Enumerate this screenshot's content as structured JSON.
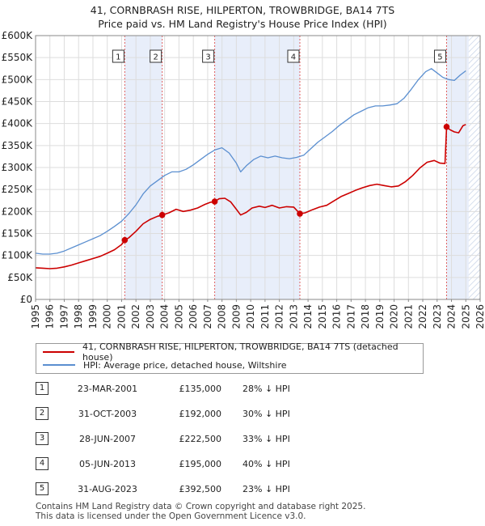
{
  "title": {
    "line1": "41, CORNBRASH RISE, HILPERTON, TROWBRIDGE, BA14 7TS",
    "line2": "Price paid vs. HM Land Registry's House Price Index (HPI)"
  },
  "chart_data": {
    "type": "line",
    "x_range": [
      1995,
      2026
    ],
    "y_range": [
      0,
      600000
    ],
    "y_ticks": [
      {
        "value": 0,
        "label": "£0"
      },
      {
        "value": 50000,
        "label": "£50K"
      },
      {
        "value": 100000,
        "label": "£100K"
      },
      {
        "value": 150000,
        "label": "£150K"
      },
      {
        "value": 200000,
        "label": "£200K"
      },
      {
        "value": 250000,
        "label": "£250K"
      },
      {
        "value": 300000,
        "label": "£300K"
      },
      {
        "value": 350000,
        "label": "£350K"
      },
      {
        "value": 400000,
        "label": "£400K"
      },
      {
        "value": 450000,
        "label": "£450K"
      },
      {
        "value": 500000,
        "label": "£500K"
      },
      {
        "value": 550000,
        "label": "£550K"
      },
      {
        "value": 600000,
        "label": "£600K"
      }
    ],
    "x_ticks": [
      "1995",
      "1996",
      "1997",
      "1998",
      "1999",
      "2000",
      "2001",
      "2002",
      "2003",
      "2004",
      "2005",
      "2006",
      "2007",
      "2008",
      "2009",
      "2010",
      "2011",
      "2012",
      "2013",
      "2014",
      "2015",
      "2016",
      "2017",
      "2018",
      "2019",
      "2020",
      "2021",
      "2022",
      "2023",
      "2024",
      "2025",
      "2026"
    ],
    "shaded_periods": [
      [
        2001.22,
        2003.83
      ],
      [
        2007.49,
        2013.43
      ],
      [
        2023.66,
        2025.2
      ]
    ],
    "hatched_after": 2025.2,
    "colors": {
      "property": "#cc0000",
      "hpi": "#5b8fd0",
      "shade": "#e8eefa",
      "vline": "#e06060",
      "grid": "#dddddd"
    },
    "series": [
      {
        "name": "41, CORNBRASH RISE, HILPERTON, TROWBRIDGE, BA14 7TS (detached house)",
        "color": "#cc0000",
        "points": [
          [
            1995.0,
            72000
          ],
          [
            1995.5,
            71000
          ],
          [
            1996.0,
            70000
          ],
          [
            1996.5,
            71000
          ],
          [
            1997.0,
            74000
          ],
          [
            1997.5,
            78000
          ],
          [
            1998.0,
            83000
          ],
          [
            1998.5,
            88000
          ],
          [
            1999.0,
            93000
          ],
          [
            1999.5,
            98000
          ],
          [
            2000.0,
            105000
          ],
          [
            2000.5,
            113000
          ],
          [
            2001.0,
            125000
          ],
          [
            2001.22,
            135000
          ],
          [
            2001.5,
            140000
          ],
          [
            2002.0,
            155000
          ],
          [
            2002.5,
            172000
          ],
          [
            2003.0,
            182000
          ],
          [
            2003.5,
            189000
          ],
          [
            2003.83,
            192000
          ],
          [
            2004.3,
            197000
          ],
          [
            2004.8,
            205000
          ],
          [
            2005.3,
            200000
          ],
          [
            2005.8,
            203000
          ],
          [
            2006.3,
            208000
          ],
          [
            2006.8,
            216000
          ],
          [
            2007.2,
            221000
          ],
          [
            2007.49,
            222500
          ],
          [
            2007.8,
            229000
          ],
          [
            2008.2,
            230000
          ],
          [
            2008.6,
            222000
          ],
          [
            2009.0,
            205000
          ],
          [
            2009.3,
            192000
          ],
          [
            2009.7,
            198000
          ],
          [
            2010.1,
            208000
          ],
          [
            2010.6,
            212000
          ],
          [
            2011.0,
            209000
          ],
          [
            2011.5,
            214000
          ],
          [
            2012.0,
            208000
          ],
          [
            2012.5,
            211000
          ],
          [
            2013.0,
            210000
          ],
          [
            2013.43,
            195000
          ],
          [
            2013.8,
            197000
          ],
          [
            2014.3,
            204000
          ],
          [
            2014.8,
            210000
          ],
          [
            2015.3,
            214000
          ],
          [
            2015.8,
            224000
          ],
          [
            2016.3,
            234000
          ],
          [
            2016.8,
            241000
          ],
          [
            2017.3,
            248000
          ],
          [
            2017.8,
            254000
          ],
          [
            2018.3,
            259000
          ],
          [
            2018.8,
            262000
          ],
          [
            2019.3,
            259000
          ],
          [
            2019.8,
            256000
          ],
          [
            2020.3,
            258000
          ],
          [
            2020.8,
            268000
          ],
          [
            2021.3,
            282000
          ],
          [
            2021.8,
            299000
          ],
          [
            2022.3,
            312000
          ],
          [
            2022.8,
            316000
          ],
          [
            2023.2,
            310000
          ],
          [
            2023.55,
            309000
          ],
          [
            2023.66,
            392500
          ],
          [
            2023.9,
            386000
          ],
          [
            2024.2,
            381000
          ],
          [
            2024.5,
            379000
          ],
          [
            2024.8,
            395000
          ],
          [
            2025.0,
            398000
          ]
        ]
      },
      {
        "name": "HPI: Average price, detached house, Wiltshire",
        "color": "#5b8fd0",
        "points": [
          [
            1995.0,
            105000
          ],
          [
            1995.5,
            103000
          ],
          [
            1996.0,
            103000
          ],
          [
            1996.5,
            105000
          ],
          [
            1997.0,
            110000
          ],
          [
            1997.5,
            117000
          ],
          [
            1998.0,
            124000
          ],
          [
            1998.5,
            131000
          ],
          [
            1999.0,
            138000
          ],
          [
            1999.5,
            145000
          ],
          [
            2000.0,
            155000
          ],
          [
            2000.5,
            166000
          ],
          [
            2001.0,
            178000
          ],
          [
            2001.5,
            195000
          ],
          [
            2002.0,
            215000
          ],
          [
            2002.5,
            240000
          ],
          [
            2003.0,
            258000
          ],
          [
            2003.5,
            270000
          ],
          [
            2004.0,
            282000
          ],
          [
            2004.5,
            290000
          ],
          [
            2005.0,
            290000
          ],
          [
            2005.5,
            296000
          ],
          [
            2006.0,
            306000
          ],
          [
            2006.5,
            318000
          ],
          [
            2007.0,
            330000
          ],
          [
            2007.5,
            340000
          ],
          [
            2008.0,
            345000
          ],
          [
            2008.5,
            333000
          ],
          [
            2009.0,
            310000
          ],
          [
            2009.3,
            290000
          ],
          [
            2009.7,
            304000
          ],
          [
            2010.2,
            318000
          ],
          [
            2010.7,
            326000
          ],
          [
            2011.2,
            322000
          ],
          [
            2011.7,
            326000
          ],
          [
            2012.2,
            322000
          ],
          [
            2012.7,
            320000
          ],
          [
            2013.2,
            323000
          ],
          [
            2013.7,
            328000
          ],
          [
            2014.2,
            343000
          ],
          [
            2014.7,
            358000
          ],
          [
            2015.2,
            370000
          ],
          [
            2015.7,
            382000
          ],
          [
            2016.2,
            396000
          ],
          [
            2016.7,
            408000
          ],
          [
            2017.2,
            420000
          ],
          [
            2017.7,
            428000
          ],
          [
            2018.2,
            436000
          ],
          [
            2018.7,
            440000
          ],
          [
            2019.2,
            440000
          ],
          [
            2019.7,
            442000
          ],
          [
            2020.2,
            445000
          ],
          [
            2020.7,
            458000
          ],
          [
            2021.2,
            478000
          ],
          [
            2021.7,
            500000
          ],
          [
            2022.2,
            518000
          ],
          [
            2022.6,
            525000
          ],
          [
            2023.0,
            515000
          ],
          [
            2023.4,
            505000
          ],
          [
            2023.8,
            500000
          ],
          [
            2024.2,
            498000
          ],
          [
            2024.6,
            510000
          ],
          [
            2025.0,
            520000
          ]
        ]
      }
    ],
    "sales": [
      {
        "id": "1",
        "x": 2001.22,
        "price": 135000
      },
      {
        "id": "2",
        "x": 2003.83,
        "price": 192000
      },
      {
        "id": "3",
        "x": 2007.49,
        "price": 222500
      },
      {
        "id": "4",
        "x": 2013.43,
        "price": 195000
      },
      {
        "id": "5",
        "x": 2023.66,
        "price": 392500
      }
    ]
  },
  "legend": {
    "property_label": "41, CORNBRASH RISE, HILPERTON, TROWBRIDGE, BA14 7TS (detached house)",
    "hpi_label": "HPI: Average price, detached house, Wiltshire"
  },
  "sales_table": [
    {
      "num": "1",
      "date": "23-MAR-2001",
      "price": "£135,000",
      "hpi": "28% ↓ HPI"
    },
    {
      "num": "2",
      "date": "31-OCT-2003",
      "price": "£192,000",
      "hpi": "30% ↓ HPI"
    },
    {
      "num": "3",
      "date": "28-JUN-2007",
      "price": "£222,500",
      "hpi": "33% ↓ HPI"
    },
    {
      "num": "4",
      "date": "05-JUN-2013",
      "price": "£195,000",
      "hpi": "40% ↓ HPI"
    },
    {
      "num": "5",
      "date": "31-AUG-2023",
      "price": "£392,500",
      "hpi": "23% ↓ HPI"
    }
  ],
  "footer": {
    "line1": "Contains HM Land Registry data © Crown copyright and database right 2025.",
    "line2": "This data is licensed under the Open Government Licence v3.0."
  }
}
